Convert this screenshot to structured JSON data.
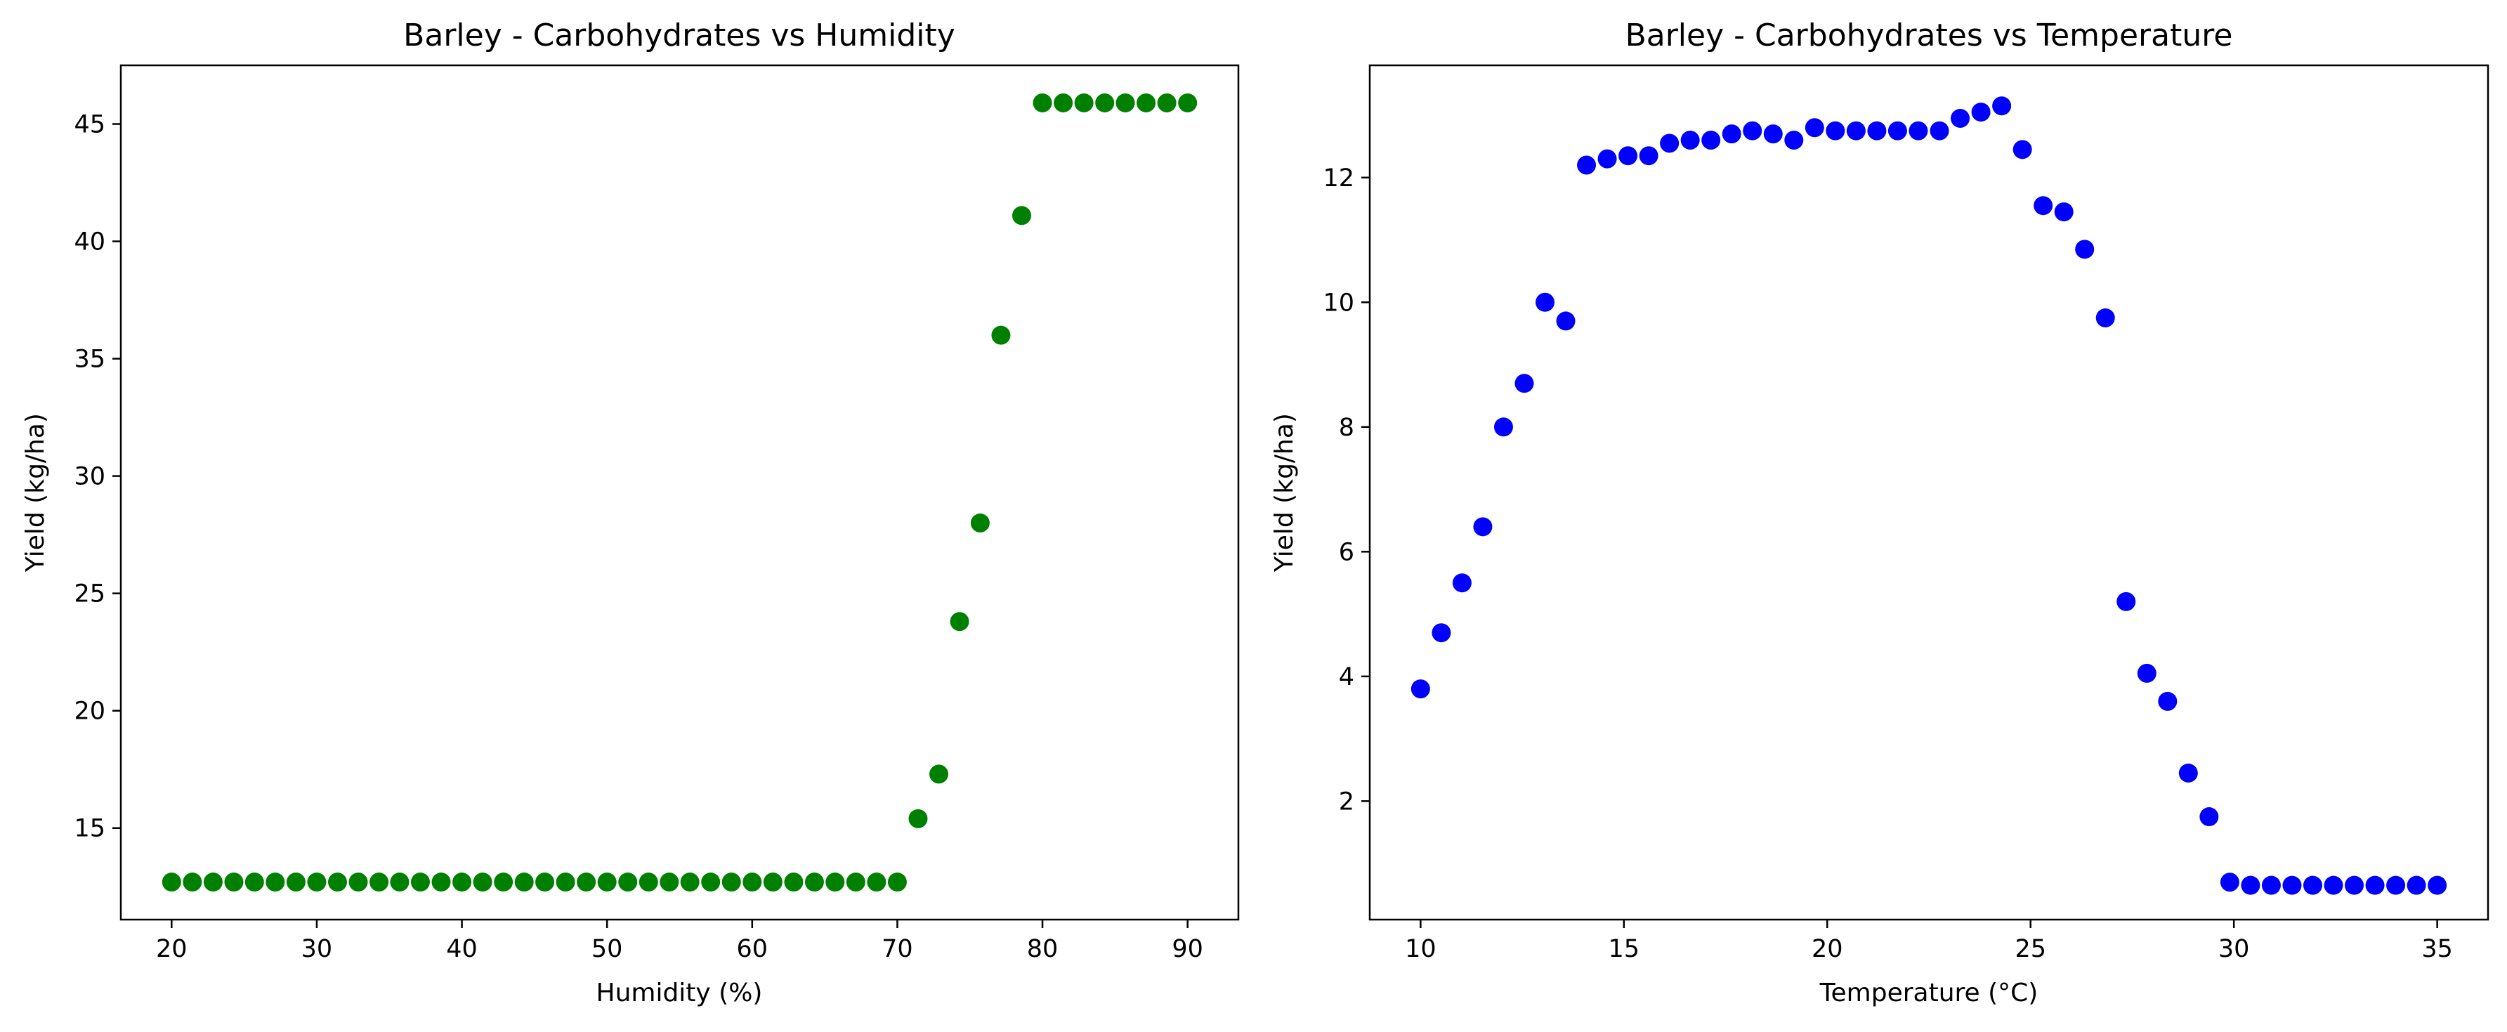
{
  "chart_data": [
    {
      "type": "scatter",
      "title": "Barley - Carbohydrates vs Humidity",
      "xlabel": "Humidity (%)",
      "ylabel": "Yield (kg/ha)",
      "xlim": [
        16.5,
        93.5
      ],
      "ylim": [
        11.1,
        47.5
      ],
      "xticks": [
        20,
        30,
        40,
        50,
        60,
        70,
        80,
        90
      ],
      "yticks": [
        15,
        20,
        25,
        30,
        35,
        40,
        45
      ],
      "color": "#008000",
      "grid": false,
      "series": [
        {
          "x": [
            20.0,
            21.43,
            22.86,
            24.29,
            25.71,
            27.14,
            28.57,
            30.0,
            31.43,
            32.86,
            34.29,
            35.71,
            37.14,
            38.57,
            40.0,
            41.43,
            42.86,
            44.29,
            45.71,
            47.14,
            48.57,
            50.0,
            51.43,
            52.86,
            54.29,
            55.71,
            57.14,
            58.57,
            60.0,
            61.43,
            62.86,
            64.29,
            65.71,
            67.14,
            68.57,
            70.0,
            71.43,
            72.86,
            74.29,
            75.71,
            77.14,
            78.57,
            80.0,
            81.43,
            82.86,
            84.29,
            85.71,
            87.14,
            88.57,
            90.0
          ],
          "y": [
            12.7,
            12.7,
            12.7,
            12.7,
            12.7,
            12.7,
            12.7,
            12.7,
            12.7,
            12.7,
            12.7,
            12.7,
            12.7,
            12.7,
            12.7,
            12.7,
            12.7,
            12.7,
            12.7,
            12.7,
            12.7,
            12.7,
            12.7,
            12.7,
            12.7,
            12.7,
            12.7,
            12.7,
            12.7,
            12.7,
            12.7,
            12.7,
            12.7,
            12.7,
            12.7,
            12.7,
            15.4,
            17.3,
            23.8,
            28.0,
            36.0,
            41.1,
            45.9,
            45.9,
            45.9,
            45.9,
            45.9,
            45.9,
            45.9,
            45.9
          ]
        }
      ]
    },
    {
      "type": "scatter",
      "title": "Barley - Carbohydrates vs Temperature",
      "xlabel": "Temperature (°C)",
      "ylabel": "Yield (kg/ha)",
      "xlim": [
        8.75,
        36.25
      ],
      "ylim": [
        0.1,
        13.8
      ],
      "xticks": [
        10,
        15,
        20,
        25,
        30,
        35
      ],
      "yticks": [
        2,
        4,
        6,
        8,
        10,
        12
      ],
      "color": "#0000ff",
      "grid": false,
      "series": [
        {
          "x": [
            10.0,
            10.51,
            11.02,
            11.53,
            12.04,
            12.55,
            13.06,
            13.57,
            14.08,
            14.59,
            15.1,
            15.61,
            16.12,
            16.63,
            17.14,
            17.65,
            18.16,
            18.67,
            19.18,
            19.69,
            20.2,
            20.71,
            21.22,
            21.73,
            22.24,
            22.76,
            23.27,
            23.78,
            24.29,
            24.8,
            25.31,
            25.82,
            26.33,
            26.84,
            27.35,
            27.86,
            28.37,
            28.88,
            29.39,
            29.9,
            30.41,
            30.92,
            31.43,
            31.94,
            32.45,
            32.96,
            33.47,
            33.98,
            34.49,
            35.0
          ],
          "y": [
            3.8,
            4.7,
            5.5,
            6.4,
            8.0,
            8.7,
            10.0,
            9.7,
            12.2,
            12.3,
            12.35,
            12.35,
            12.55,
            12.6,
            12.6,
            12.7,
            12.75,
            12.7,
            12.6,
            12.8,
            12.75,
            12.75,
            12.75,
            12.75,
            12.75,
            12.75,
            12.95,
            13.05,
            13.15,
            12.45,
            11.55,
            11.45,
            10.85,
            9.75,
            5.2,
            4.05,
            3.6,
            2.45,
            1.75,
            0.7,
            0.65,
            0.65,
            0.65,
            0.65,
            0.65,
            0.65,
            0.65,
            0.65,
            0.65,
            0.65
          ]
        }
      ]
    }
  ]
}
